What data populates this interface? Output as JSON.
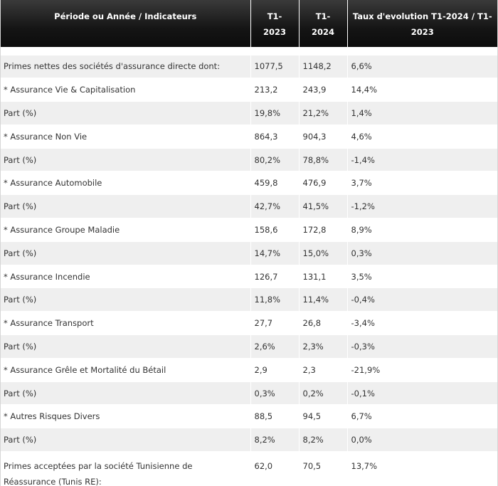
{
  "table": {
    "headers": [
      "Période ou Année / Indicateurs",
      "T1-\n2023",
      "T1-\n2024",
      "Taux d'evolution T1-2024 / T1-\n2023"
    ],
    "rows": [
      [
        "Primes nettes des sociétés d'assurance directe dont:",
        "1077,5",
        "1148,2",
        "6,6%"
      ],
      [
        "* Assurance Vie & Capitalisation",
        "213,2",
        "243,9",
        "14,4%"
      ],
      [
        "Part (%)",
        "19,8%",
        "21,2%",
        "1,4%"
      ],
      [
        "* Assurance Non Vie",
        "864,3",
        "904,3",
        "4,6%"
      ],
      [
        "Part (%)",
        "80,2%",
        "78,8%",
        "-1,4%"
      ],
      [
        "* Assurance Automobile",
        "459,8",
        "476,9",
        "3,7%"
      ],
      [
        "Part (%)",
        "42,7%",
        "41,5%",
        "-1,2%"
      ],
      [
        "* Assurance Groupe Maladie",
        "158,6",
        "172,8",
        "8,9%"
      ],
      [
        "Part (%)",
        "14,7%",
        "15,0%",
        "0,3%"
      ],
      [
        "* Assurance Incendie",
        "126,7",
        "131,1",
        "3,5%"
      ],
      [
        "Part (%)",
        "11,8%",
        "11,4%",
        "-0,4%"
      ],
      [
        "* Assurance Transport",
        "27,7",
        "26,8",
        "-3,4%"
      ],
      [
        "Part (%)",
        "2,6%",
        "2,3%",
        "-0,3%"
      ],
      [
        "* Assurance Grêle et Mortalité du Bétail",
        "2,9",
        "2,3",
        "-21,9%"
      ],
      [
        "Part (%)",
        "0,3%",
        "0,2%",
        "-0,1%"
      ],
      [
        "* Autres Risques Divers",
        "88,5",
        "94,5",
        "6,7%"
      ],
      [
        "Part (%)",
        "8,2%",
        "8,2%",
        "0,0%"
      ],
      [
        "Primes acceptées par la société Tunisienne de Réassurance (Tunis RE):",
        "62,0",
        "70,5",
        "13,7%"
      ]
    ]
  },
  "colors": {
    "header_bg": "#111111",
    "header_text": "#ffffff",
    "row_stripe": "#efefef",
    "row_plain": "#ffffff",
    "text": "#333333"
  }
}
